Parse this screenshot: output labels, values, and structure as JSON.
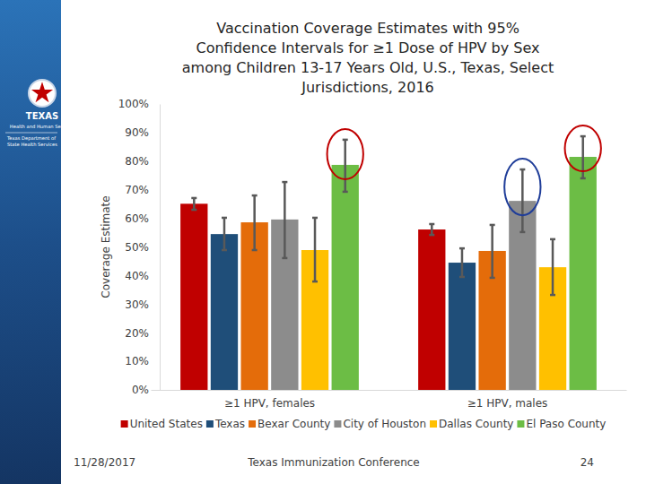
{
  "logo": {
    "name": "TEXAS",
    "agency": "Health and Human Services",
    "department": "Texas Department of State Health Services"
  },
  "footer": {
    "date": "11/28/2017",
    "event": "Texas Immunization Conference",
    "page": 24
  },
  "chart_data": {
    "type": "bar",
    "title": "Vaccination Coverage Estimates with 95%\nConfidence Intervals for ≥1 Dose of HPV by Sex\namong Children 13-17 Years Old, U.S., Texas, Select\nJurisdictions, 2016",
    "y_label": "Coverage Estimate",
    "categories": [
      "≥1 HPV, females",
      "≥1 HPV, males"
    ],
    "series": [
      {
        "name": "United States",
        "color": "#c00000",
        "values": [
          65.1,
          56.1
        ],
        "ci_lower": [
          63.0,
          54.2
        ],
        "ci_upper": [
          67.1,
          58.0
        ]
      },
      {
        "name": "Texas",
        "color": "#1f4e79",
        "values": [
          54.5,
          44.5
        ],
        "ci_lower": [
          48.9,
          39.5
        ],
        "ci_upper": [
          60.2,
          49.5
        ]
      },
      {
        "name": "Bexar County",
        "color": "#e46c0a",
        "values": [
          58.6,
          48.6
        ],
        "ci_lower": [
          48.9,
          39.2
        ],
        "ci_upper": [
          68.0,
          57.7
        ]
      },
      {
        "name": "City of Houston",
        "color": "#8c8c8c",
        "values": [
          59.6,
          66.1
        ],
        "ci_lower": [
          46.1,
          55.2
        ],
        "ci_upper": [
          72.7,
          77.1
        ]
      },
      {
        "name": "Dallas County",
        "color": "#ffc000",
        "values": [
          48.9,
          42.9
        ],
        "ci_lower": [
          37.9,
          33.2
        ],
        "ci_upper": [
          60.2,
          52.7
        ]
      },
      {
        "name": "El Paso County",
        "color": "#6cbd45",
        "values": [
          78.7,
          81.5
        ],
        "ci_lower": [
          69.3,
          74.0
        ],
        "ci_upper": [
          87.5,
          88.7
        ]
      }
    ],
    "ylim": [
      0,
      100
    ],
    "yticks": [
      {
        "value": 0,
        "label": "0%"
      },
      {
        "value": 10,
        "label": "10%"
      },
      {
        "value": 20,
        "label": "20%"
      },
      {
        "value": 30,
        "label": "30%"
      },
      {
        "value": 40,
        "label": "40%"
      },
      {
        "value": 50,
        "label": "50%"
      },
      {
        "value": 60,
        "label": "60%"
      },
      {
        "value": 70,
        "label": "70%"
      },
      {
        "value": 80,
        "label": "80%"
      },
      {
        "value": 90,
        "label": "90%"
      },
      {
        "value": 100,
        "label": "100%"
      }
    ],
    "grid": false,
    "legend": "bottom"
  }
}
